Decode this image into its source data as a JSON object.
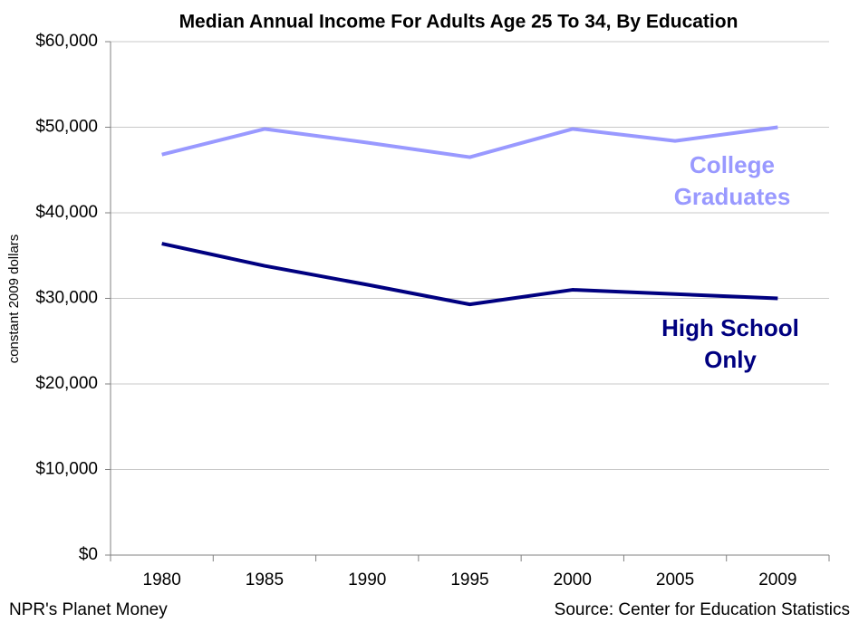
{
  "chart_data": {
    "type": "line",
    "title": "Median Annual Income For Adults Age 25 To 34, By Education",
    "y_label": "constant 2009 dollars",
    "categories": [
      "1980",
      "1985",
      "1990",
      "1995",
      "2000",
      "2005",
      "2009"
    ],
    "series": [
      {
        "name": "College Graduates",
        "color": "#9999ff",
        "values": [
          46800,
          49800,
          48200,
          46500,
          49800,
          48400,
          50000
        ]
      },
      {
        "name": "High School Only",
        "color": "#000080",
        "values": [
          36400,
          33800,
          31600,
          29300,
          31000,
          30500,
          30000
        ]
      }
    ],
    "ylim": [
      0,
      60000
    ],
    "yticks": [
      {
        "value": 0,
        "label": "$0"
      },
      {
        "value": 10000,
        "label": "$10,000"
      },
      {
        "value": 20000,
        "label": "$20,000"
      },
      {
        "value": 30000,
        "label": "$30,000"
      },
      {
        "value": 40000,
        "label": "$40,000"
      },
      {
        "value": 50000,
        "label": "$50,000"
      },
      {
        "value": 60000,
        "label": "$60,000"
      }
    ],
    "grid": true,
    "footer_left": "NPR's Planet Money",
    "footer_right": "Source: Center for Education Statistics"
  }
}
